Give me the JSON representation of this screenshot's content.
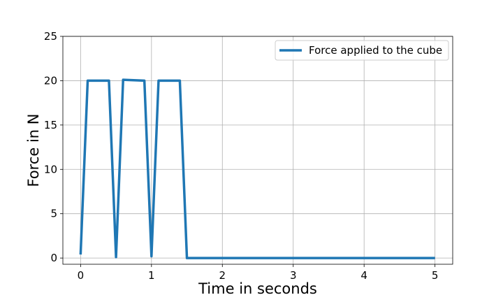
{
  "chart_data": {
    "type": "line",
    "title": "",
    "xlabel": "Time in seconds",
    "ylabel": "Force in N",
    "xlim": [
      -0.25,
      5.25
    ],
    "ylim": [
      -0.7,
      25
    ],
    "xticks": [
      0,
      1,
      2,
      3,
      4,
      5
    ],
    "yticks": [
      0,
      5,
      10,
      15,
      20,
      25
    ],
    "grid": true,
    "legend_position": "upper-right",
    "series": [
      {
        "name": "Force applied to the cube",
        "color": "#1f77b4",
        "x": [
          0.0,
          0.1,
          0.4,
          0.5,
          0.6,
          0.9,
          1.0,
          1.1,
          1.4,
          1.5,
          5.0
        ],
        "y": [
          0.4,
          20.0,
          20.0,
          0.1,
          20.1,
          20.0,
          0.2,
          20.0,
          20.0,
          0.0,
          0.0
        ]
      }
    ]
  }
}
